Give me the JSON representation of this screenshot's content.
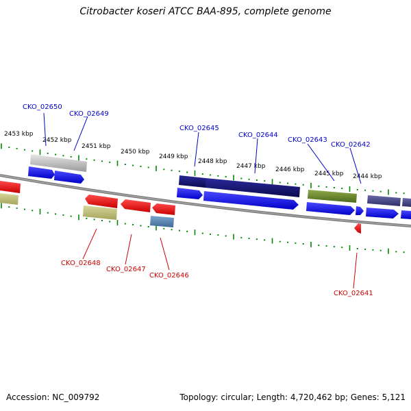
{
  "title": "Citrobacter koseri ATCC BAA-895, complete genome",
  "footer": {
    "accession": "Accession: NC_009792",
    "topology": "Topology: circular; Length: 4,720,462 bp; Genes: 5,121"
  },
  "scale_labels": [
    "2453 kbp",
    "2452 kbp",
    "2451 kbp",
    "2450 kbp",
    "2449 kbp",
    "2448 kbp",
    "2447 kbp",
    "2446 kbp",
    "2445 kbp",
    "2444 kbp"
  ],
  "genes_top": [
    "CKO_02650",
    "CKO_02649",
    "CKO_02645",
    "CKO_02644",
    "CKO_02643",
    "CKO_02642"
  ],
  "genes_bottom": [
    "CKO_02648",
    "CKO_02647",
    "CKO_02646",
    "CKO_02641"
  ],
  "colors": {
    "top_label": "#0000cc",
    "bottom_label": "#cc0000",
    "tick": "#008800",
    "backbone": "#888888"
  }
}
